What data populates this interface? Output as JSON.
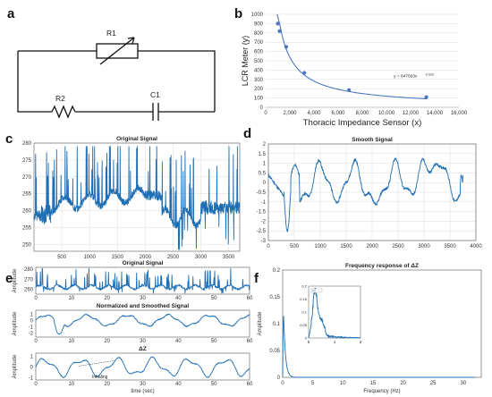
{
  "panels": {
    "a": {
      "letter": "a",
      "r1": "R1",
      "r2": "R2",
      "c1": "C1"
    },
    "b": {
      "letter": "b"
    },
    "c": {
      "letter": "c"
    },
    "d": {
      "letter": "d"
    },
    "e": {
      "letter": "e"
    },
    "f": {
      "letter": "f"
    }
  },
  "chart_data": [
    {
      "id": "b",
      "type": "scatter",
      "title": "",
      "xlabel": "Thoracic Impedance Sensor (x)",
      "ylabel": "LCR Meter (y)",
      "xlim": [
        0,
        16000
      ],
      "ylim": [
        0,
        1000
      ],
      "xticks": [
        "0",
        "2,000",
        "4,000",
        "6,000",
        "8,000",
        "10,000",
        "12,000",
        "14,000",
        "16,000"
      ],
      "yticks": [
        "0",
        "100",
        "200",
        "300",
        "400",
        "500",
        "600",
        "700",
        "800",
        "900",
        "1000"
      ],
      "x": [
        1000,
        1150,
        1700,
        3200,
        6900,
        13300
      ],
      "y": [
        900,
        820,
        650,
        370,
        185,
        110
      ],
      "annotation": "y = 647503x",
      "annotation_exp": "-0.933",
      "grid": true,
      "color": "#4a78c2"
    },
    {
      "id": "c",
      "type": "line",
      "title": "Original Signal",
      "xlim": [
        0,
        3700
      ],
      "ylim": [
        248,
        280
      ],
      "xticks": [
        "500",
        "1000",
        "1500",
        "2000",
        "2500",
        "3000",
        "3500"
      ],
      "yticks": [
        "250",
        "255",
        "260",
        "265",
        "270",
        "275",
        "280"
      ],
      "grid": true
    },
    {
      "id": "d",
      "type": "line",
      "title": "Smooth Signal",
      "xlim": [
        0,
        4000
      ],
      "ylim": [
        -3,
        2
      ],
      "xticks": [
        "0",
        "500",
        "1000",
        "1500",
        "2000",
        "2500",
        "3000",
        "3500",
        "4000"
      ],
      "yticks": [
        "-3",
        "-2.5",
        "-2",
        "-1.5",
        "-1",
        "-0.5",
        "0",
        "0.5",
        "1",
        "1.5",
        "2"
      ],
      "grid": true
    },
    {
      "id": "e1",
      "type": "line",
      "title": "Original Signal",
      "ylabel": "Amplitude",
      "xlim": [
        0,
        60
      ],
      "ylim": [
        255,
        282
      ],
      "xticks": [
        "0",
        "10",
        "20",
        "30",
        "40",
        "50",
        "60"
      ],
      "yticks": [
        "260",
        "270",
        "280"
      ]
    },
    {
      "id": "e2",
      "type": "line",
      "title": "Normalized and Smoothed Signal",
      "ylabel": "Amplitude",
      "xlim": [
        0,
        60
      ],
      "ylim": [
        -2.6,
        1.6
      ],
      "xticks": [
        "0",
        "10",
        "20",
        "30",
        "40",
        "50",
        "60"
      ],
      "yticks": [
        "-2",
        "-1",
        "0",
        "1"
      ]
    },
    {
      "id": "e3",
      "type": "line",
      "title": "ΔZ",
      "ylabel": "Amplitude",
      "xlabel": "time (sec)",
      "annotation": "Inhaling",
      "xlim": [
        0,
        60
      ],
      "ylim": [
        -1.2,
        1.3
      ],
      "xticks": [
        "0",
        "10",
        "20",
        "30",
        "40",
        "50",
        "60"
      ],
      "yticks": [
        "-1",
        "0",
        "1"
      ]
    },
    {
      "id": "f",
      "type": "line",
      "title": "Frequency response of ΔZ",
      "ylabel": "Amplitude",
      "xlabel": "Frequency (Hz)",
      "xlim": [
        0,
        33
      ],
      "ylim": [
        0,
        0.2
      ],
      "xticks": [
        "0",
        "5",
        "10",
        "15",
        "20",
        "25",
        "30"
      ],
      "yticks": [
        "0",
        "0.05",
        "0.1",
        "0.15",
        "0.2"
      ],
      "inset": {
        "xlim": [
          0,
          2
        ],
        "ylim": [
          0,
          0.2
        ],
        "xticks": [
          "0",
          "1",
          "2"
        ],
        "yticks": [
          "0",
          "0.05",
          "0.1",
          "0.15",
          "0.2"
        ]
      }
    }
  ]
}
